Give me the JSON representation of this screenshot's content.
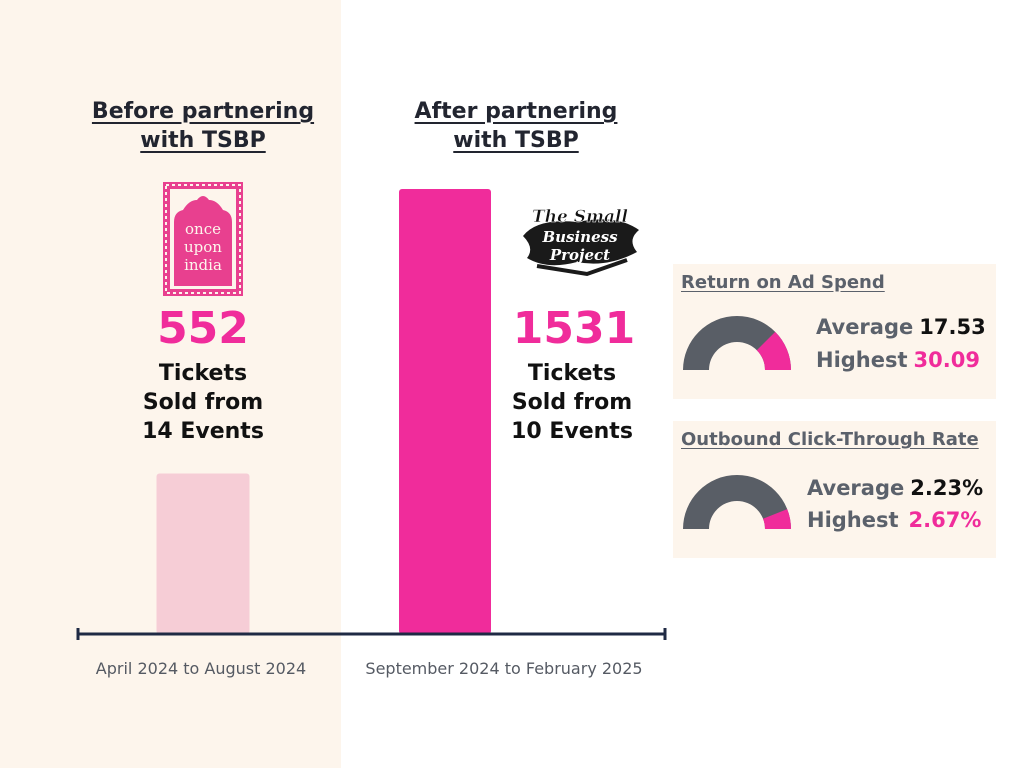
{
  "before": {
    "heading_line1": "Before partnering",
    "heading_line2": "with TSBP",
    "number": "552",
    "desc": "Tickets\nSold from\n14 Events",
    "period": "April 2024 to August 2024",
    "logo_text": [
      "once",
      "upon",
      "india"
    ]
  },
  "after": {
    "heading_line1": "After partnering",
    "heading_line2": "with TSBP",
    "number": "1531",
    "desc": "Tickets\nSold from\n10 Events",
    "period": "September 2024 to February 2025",
    "logo_text": [
      "The Small",
      "Business",
      "Project"
    ]
  },
  "roas": {
    "title": "Return on Ad Spend",
    "avg_label": "Average",
    "avg_value": "17.53",
    "high_label": "Highest",
    "high_value": "30.09",
    "fill_fraction": 0.25
  },
  "ctr": {
    "title": "Outbound Click-Through Rate",
    "avg_label": "Average",
    "avg_value": "2.23%",
    "high_label": "Highest",
    "high_value": "2.67%",
    "fill_fraction": 0.12
  },
  "colors": {
    "accent": "#f02c9b",
    "before_bar": "#f6cdd6",
    "axis": "#1f2a44",
    "gauge_track": "#595e66",
    "left_panel": "#fdf5ec"
  },
  "chart_data": {
    "type": "bar",
    "categories": [
      "April 2024 to August 2024",
      "September 2024 to February 2025"
    ],
    "series": [
      {
        "values": [
          552,
          1531
        ]
      }
    ],
    "ylim": [
      0,
      1531
    ]
  }
}
